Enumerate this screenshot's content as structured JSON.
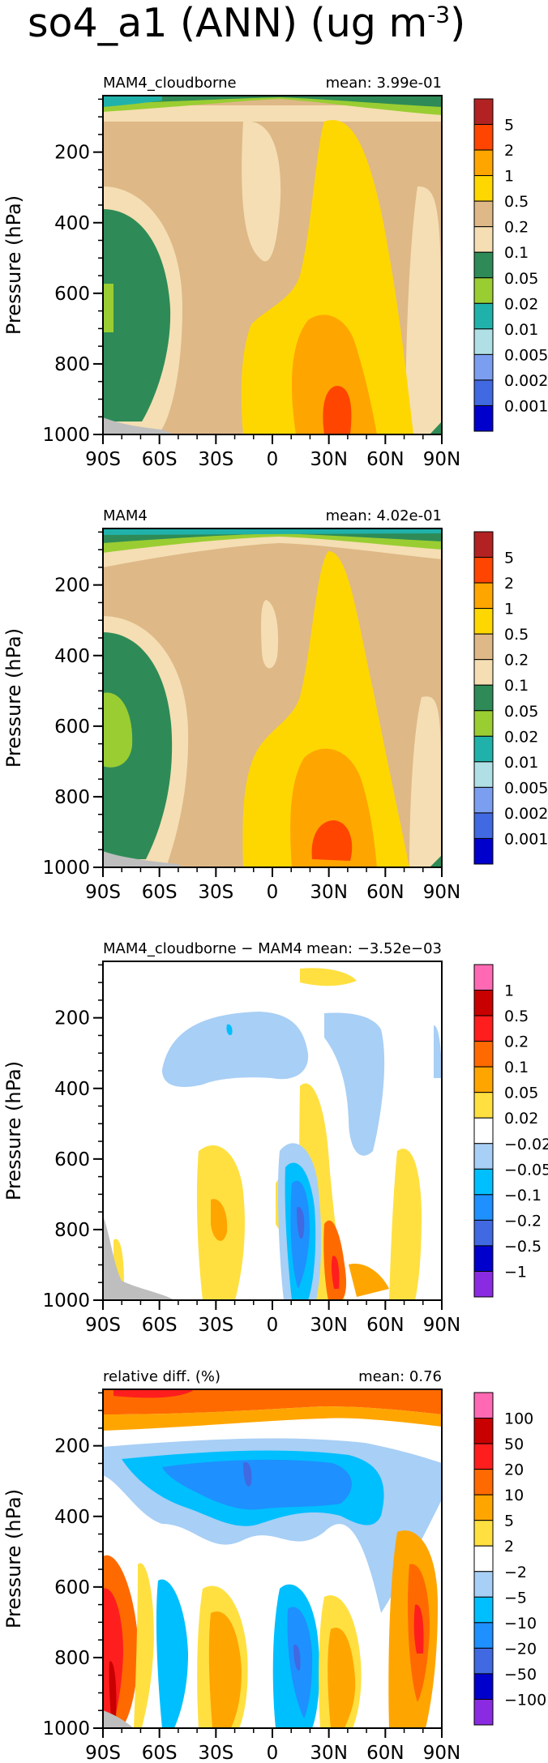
{
  "figure": {
    "title_main": "so4_a1 (ANN) (ug m",
    "title_sup": "-3",
    "title_close": ")"
  },
  "chart_data": [
    {
      "type": "heatmap",
      "left_title": "MAM4_cloudborne",
      "right_title": "mean: 3.99e-01",
      "ylabel": "Pressure (hPa)",
      "x_ticks": [
        "90S",
        "60S",
        "30S",
        "0",
        "30N",
        "60N",
        "90N"
      ],
      "y_ticks": [
        "200",
        "400",
        "600",
        "800",
        "1000"
      ],
      "xlim": [
        -90,
        90
      ],
      "ylim": [
        1000,
        40
      ],
      "levels": [
        "5",
        "2",
        "1",
        "0.5",
        "0.2",
        "0.1",
        "0.05",
        "0.02",
        "0.01",
        "0.005",
        "0.002",
        "0.001"
      ],
      "colors": [
        "#B22222",
        "#FF4500",
        "#FFA500",
        "#FFD700",
        "#DEB887",
        "#F5DEB3",
        "#2E8B57",
        "#9ACD32",
        "#20B2AA",
        "#B0E0E6",
        "#7B9EF0",
        "#4169E1",
        "#0000CD"
      ],
      "regions": [
        {
          "color_index": 4,
          "desc": "tan background"
        },
        {
          "color_index": 3,
          "desc": "yellow NH lower troposphere"
        },
        {
          "color_index": 2,
          "desc": "orange 30N boundary layer"
        },
        {
          "color_index": 1,
          "desc": "red-orange near-surface 30N"
        },
        {
          "color_index": 6,
          "desc": "green SH polar mid troposphere"
        },
        {
          "color_index": 5,
          "desc": "wheat bands"
        }
      ]
    },
    {
      "type": "heatmap",
      "left_title": "MAM4",
      "right_title": "mean: 4.02e-01",
      "ylabel": "Pressure (hPa)",
      "x_ticks": [
        "90S",
        "60S",
        "30S",
        "0",
        "30N",
        "60N",
        "90N"
      ],
      "y_ticks": [
        "200",
        "400",
        "600",
        "800",
        "1000"
      ],
      "xlim": [
        -90,
        90
      ],
      "ylim": [
        1000,
        40
      ],
      "levels": [
        "5",
        "2",
        "1",
        "0.5",
        "0.2",
        "0.1",
        "0.05",
        "0.02",
        "0.01",
        "0.005",
        "0.002",
        "0.001"
      ],
      "colors": [
        "#B22222",
        "#FF4500",
        "#FFA500",
        "#FFD700",
        "#DEB887",
        "#F5DEB3",
        "#2E8B57",
        "#9ACD32",
        "#20B2AA",
        "#B0E0E6",
        "#7B9EF0",
        "#4169E1",
        "#0000CD"
      ]
    },
    {
      "type": "heatmap",
      "left_title": "MAM4_cloudborne − MAM4",
      "right_title": "mean: −3.52e−03",
      "ylabel": "Pressure (hPa)",
      "x_ticks": [
        "90S",
        "60S",
        "30S",
        "0",
        "30N",
        "60N",
        "90N"
      ],
      "y_ticks": [
        "200",
        "400",
        "600",
        "800",
        "1000"
      ],
      "xlim": [
        -90,
        90
      ],
      "ylim": [
        1000,
        40
      ],
      "levels": [
        "1",
        "0.5",
        "0.2",
        "0.1",
        "0.05",
        "0.02",
        "−0.02",
        "−0.05",
        "−0.1",
        "−0.2",
        "−0.5",
        "−1"
      ],
      "colors": [
        "#FF69B4",
        "#C80000",
        "#FF1E1E",
        "#FF6A00",
        "#FFA500",
        "#FFE040",
        "#FFFFFF",
        "#A8CFF5",
        "#00BFFF",
        "#1E90FF",
        "#4169E1",
        "#0000CD",
        "#8A2BE2"
      ]
    },
    {
      "type": "heatmap",
      "left_title": "relative diff. (%)",
      "right_title": "mean:  0.76",
      "ylabel": "Pressure (hPa)",
      "x_ticks": [
        "90S",
        "60S",
        "30S",
        "0",
        "30N",
        "60N",
        "90N"
      ],
      "y_ticks": [
        "200",
        "400",
        "600",
        "800",
        "1000"
      ],
      "xlim": [
        -90,
        90
      ],
      "ylim": [
        1000,
        40
      ],
      "levels": [
        "100",
        "50",
        "20",
        "10",
        "5",
        "2",
        "−2",
        "−5",
        "−10",
        "−20",
        "−50",
        "−100"
      ],
      "colors": [
        "#FF69B4",
        "#C80000",
        "#FF1E1E",
        "#FF6A00",
        "#FFA500",
        "#FFE040",
        "#FFFFFF",
        "#A8CFF5",
        "#00BFFF",
        "#1E90FF",
        "#4169E1",
        "#0000CD",
        "#8A2BE2"
      ]
    }
  ]
}
